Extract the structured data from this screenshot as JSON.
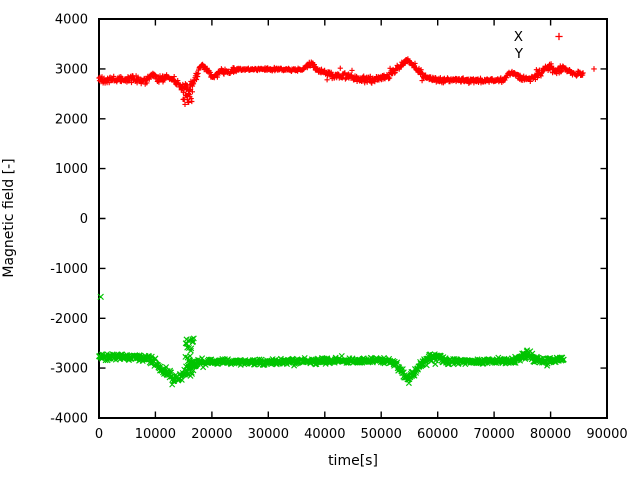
{
  "chart_data": {
    "type": "scatter",
    "title": "",
    "xlabel": "time[s]",
    "ylabel": "Magnetic field [-]",
    "xlim": [
      0,
      90000
    ],
    "ylim": [
      -4000,
      4000
    ],
    "xticks": [
      0,
      10000,
      20000,
      30000,
      40000,
      50000,
      60000,
      70000,
      80000,
      90000
    ],
    "yticks": [
      -4000,
      -3000,
      -2000,
      -1000,
      0,
      1000,
      2000,
      3000,
      4000
    ],
    "grid": false,
    "legend_position": "top-right-inside",
    "background_color": "#ffffff",
    "axis_color": "#000000",
    "series": [
      {
        "name": "X",
        "marker": "plus",
        "color": "#ff0000",
        "seed": 42,
        "step": 90,
        "legend_marker_visible": true,
        "keypoints": [
          [
            0,
            2790,
            90
          ],
          [
            3000,
            2770,
            85
          ],
          [
            6000,
            2800,
            80
          ],
          [
            8500,
            2760,
            85
          ],
          [
            9500,
            2880,
            70
          ],
          [
            10600,
            2790,
            80
          ],
          [
            12000,
            2830,
            80
          ],
          [
            13200,
            2780,
            90
          ],
          [
            14200,
            2690,
            120
          ],
          [
            15300,
            2560,
            150
          ],
          [
            16300,
            2610,
            130
          ],
          [
            17200,
            2860,
            100
          ],
          [
            18100,
            3070,
            70
          ],
          [
            19000,
            2990,
            70
          ],
          [
            20400,
            2830,
            80
          ],
          [
            21600,
            2960,
            60
          ],
          [
            23200,
            2940,
            55
          ],
          [
            24800,
            2990,
            35
          ],
          [
            36000,
            2985,
            35
          ],
          [
            37600,
            3110,
            60
          ],
          [
            38800,
            2990,
            60
          ],
          [
            40000,
            2920,
            85
          ],
          [
            41500,
            2870,
            95
          ],
          [
            43500,
            2880,
            95
          ],
          [
            45500,
            2810,
            95
          ],
          [
            47500,
            2790,
            105
          ],
          [
            49500,
            2800,
            100
          ],
          [
            51500,
            2880,
            90
          ],
          [
            53000,
            3030,
            70
          ],
          [
            54500,
            3175,
            60
          ],
          [
            55500,
            3110,
            70
          ],
          [
            56600,
            2960,
            80
          ],
          [
            57800,
            2830,
            70
          ],
          [
            59000,
            2780,
            60
          ],
          [
            61000,
            2770,
            55
          ],
          [
            71500,
            2770,
            55
          ],
          [
            73000,
            2930,
            60
          ],
          [
            74500,
            2830,
            70
          ],
          [
            76500,
            2800,
            75
          ],
          [
            78300,
            2930,
            85
          ],
          [
            79800,
            3040,
            85
          ],
          [
            81000,
            2960,
            85
          ],
          [
            82300,
            3010,
            85
          ],
          [
            83500,
            2920,
            85
          ],
          [
            85000,
            2880,
            80
          ],
          [
            85800,
            2870,
            75
          ]
        ],
        "bursts": [
          {
            "t0": 14900,
            "t1": 16600,
            "center": 2430,
            "spread": 180,
            "step": 110
          }
        ],
        "outliers": [
          [
            87700,
            3000
          ]
        ]
      },
      {
        "name": "Y",
        "marker": "cross",
        "color": "#00c400",
        "seed": 1337,
        "step": 90,
        "legend_marker_visible": false,
        "keypoints": [
          [
            0,
            -2760,
            70
          ],
          [
            4000,
            -2770,
            70
          ],
          [
            8000,
            -2790,
            80
          ],
          [
            9800,
            -2840,
            90
          ],
          [
            11000,
            -3010,
            100
          ],
          [
            12300,
            -3130,
            110
          ],
          [
            13500,
            -3190,
            130
          ],
          [
            14800,
            -3150,
            130
          ],
          [
            15700,
            -3050,
            120
          ],
          [
            16800,
            -2900,
            110
          ],
          [
            17600,
            -2870,
            80
          ],
          [
            20000,
            -2880,
            70
          ],
          [
            24000,
            -2870,
            70
          ],
          [
            28000,
            -2880,
            65
          ],
          [
            33000,
            -2870,
            65
          ],
          [
            38000,
            -2860,
            70
          ],
          [
            42000,
            -2840,
            70
          ],
          [
            46000,
            -2850,
            65
          ],
          [
            50000,
            -2840,
            65
          ],
          [
            52500,
            -2890,
            75
          ],
          [
            53800,
            -3080,
            95
          ],
          [
            54800,
            -3230,
            95
          ],
          [
            55800,
            -3090,
            95
          ],
          [
            57000,
            -2920,
            85
          ],
          [
            58300,
            -2820,
            95
          ],
          [
            59500,
            -2740,
            135
          ],
          [
            60500,
            -2830,
            115
          ],
          [
            61800,
            -2870,
            75
          ],
          [
            65000,
            -2870,
            60
          ],
          [
            70000,
            -2860,
            60
          ],
          [
            73500,
            -2850,
            65
          ],
          [
            75300,
            -2740,
            105
          ],
          [
            76300,
            -2720,
            110
          ],
          [
            77500,
            -2840,
            85
          ],
          [
            79000,
            -2850,
            75
          ],
          [
            81000,
            -2830,
            75
          ],
          [
            82400,
            -2830,
            75
          ]
        ],
        "bursts": [
          {
            "t0": 15300,
            "t1": 16800,
            "center": -2790,
            "spread": 430,
            "step": 65
          }
        ],
        "outliers": [
          [
            300,
            -1570
          ]
        ]
      }
    ]
  }
}
